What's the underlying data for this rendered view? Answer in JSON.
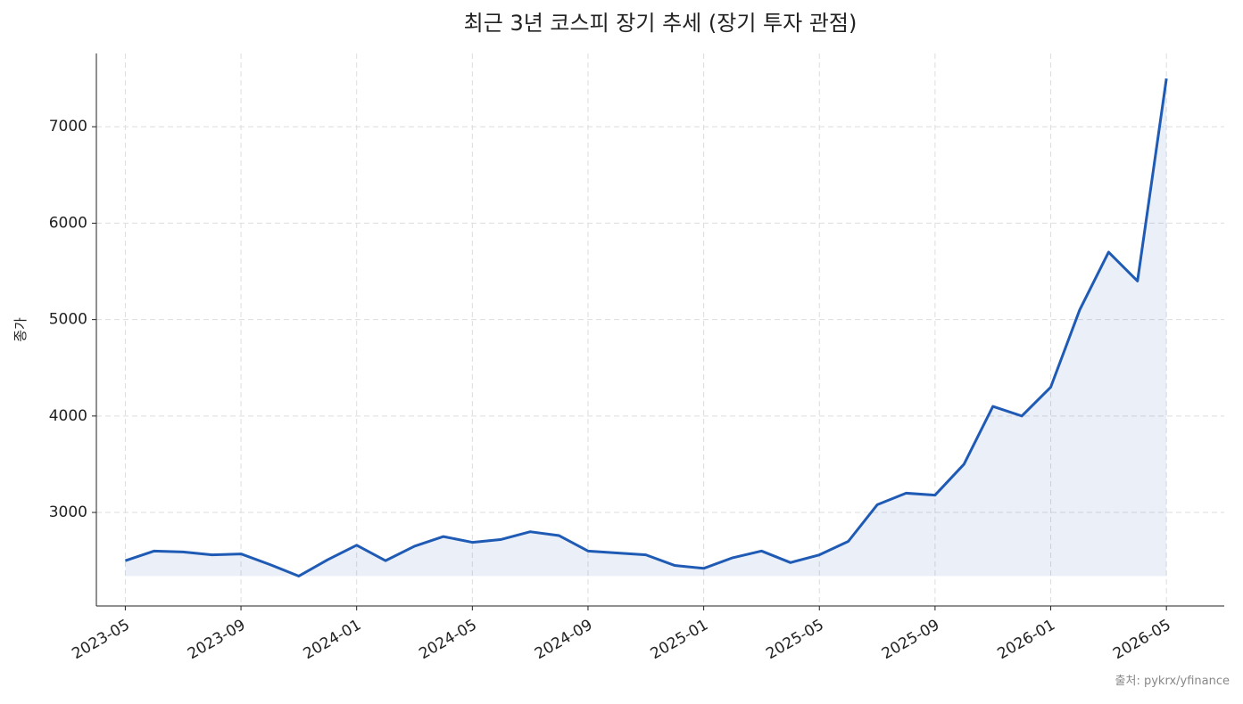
{
  "chart_data": {
    "type": "line",
    "title": "최근 3년 코스피 장기 추세 (장기 투자 관점)",
    "y_label": "종가",
    "source": "출처: pykrx/yfinance",
    "x": [
      "2023-05",
      "2023-06",
      "2023-07",
      "2023-08",
      "2023-09",
      "2023-10",
      "2023-11",
      "2023-12",
      "2024-01",
      "2024-02",
      "2024-03",
      "2024-04",
      "2024-05",
      "2024-06",
      "2024-07",
      "2024-08",
      "2024-09",
      "2024-10",
      "2024-11",
      "2024-12",
      "2025-01",
      "2025-02",
      "2025-03",
      "2025-04",
      "2025-05",
      "2025-06",
      "2025-07",
      "2025-08",
      "2025-09",
      "2025-10",
      "2025-11",
      "2025-12",
      "2026-01",
      "2026-02",
      "2026-03",
      "2026-04",
      "2026-05"
    ],
    "series": [
      {
        "name": "종가",
        "color": "#1f5bb5",
        "values": [
          2500,
          2600,
          2590,
          2560,
          2570,
          2460,
          2340,
          2510,
          2660,
          2500,
          2650,
          2750,
          2690,
          2720,
          2800,
          2760,
          2600,
          2580,
          2560,
          2450,
          2420,
          2530,
          2600,
          2480,
          2560,
          2700,
          3080,
          3200,
          3180,
          3500,
          4100,
          4000,
          4300,
          5100,
          5700,
          5400,
          7500
        ]
      }
    ],
    "xlim": [
      "2023-04",
      "2026-07"
    ],
    "ylim": [
      2030,
      7760
    ],
    "xticks": [
      "2023-05",
      "2023-09",
      "2024-01",
      "2024-05",
      "2024-09",
      "2025-01",
      "2025-05",
      "2025-09",
      "2026-01",
      "2026-05"
    ],
    "yticks": [
      3000,
      4000,
      5000,
      6000,
      7000
    ],
    "grid": true
  }
}
